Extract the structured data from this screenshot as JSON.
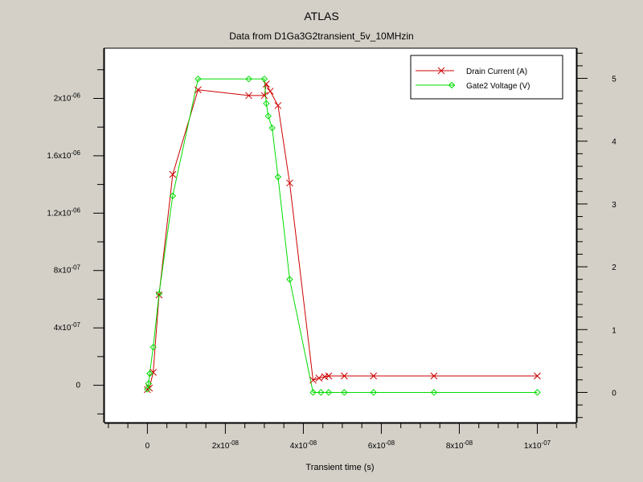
{
  "app_title": "ATLAS",
  "subtitle": "Data from D1Ga3G2transient_5v_10MHzin",
  "colors": {
    "background": "#d4d0c8",
    "plot_bg": "#ffffff",
    "drain": "#cc0000",
    "gate": "#00dd00"
  },
  "chart_data": {
    "type": "line",
    "title": "Data from D1Ga3G2transient_5v_10MHzin",
    "xlabel": "Transient time (s)",
    "ylabel": "",
    "y2label": "",
    "xlim": [
      -1.1e-08,
      1.1e-07
    ],
    "ylim": [
      -2.6e-07,
      2.35e-06
    ],
    "y2lim": [
      -0.48,
      5.48
    ],
    "x_ticks": [
      {
        "value": 0,
        "mant": "0",
        "exp": ""
      },
      {
        "value": 2e-08,
        "mant": "2x10",
        "exp": "-08"
      },
      {
        "value": 4e-08,
        "mant": "4x10",
        "exp": "-08"
      },
      {
        "value": 6e-08,
        "mant": "6x10",
        "exp": "-08"
      },
      {
        "value": 8e-08,
        "mant": "8x10",
        "exp": "-08"
      },
      {
        "value": 1e-07,
        "mant": "1x10",
        "exp": "-07"
      }
    ],
    "y_ticks": [
      {
        "value": 0,
        "mant": "0",
        "exp": ""
      },
      {
        "value": 4e-07,
        "mant": "4x10",
        "exp": "-07"
      },
      {
        "value": 8e-07,
        "mant": "8x10",
        "exp": "-07"
      },
      {
        "value": 1.2e-06,
        "mant": "1.2x10",
        "exp": "-06"
      },
      {
        "value": 1.6e-06,
        "mant": "1.6x10",
        "exp": "-06"
      },
      {
        "value": 2e-06,
        "mant": "2x10",
        "exp": "-06"
      }
    ],
    "y2_ticks": [
      {
        "value": 0,
        "label": "0"
      },
      {
        "value": 1,
        "label": "1"
      },
      {
        "value": 2,
        "label": "2"
      },
      {
        "value": 3,
        "label": "3"
      },
      {
        "value": 4,
        "label": "4"
      },
      {
        "value": 5,
        "label": "5"
      }
    ],
    "legend_position": "top-right",
    "series": [
      {
        "name": "Drain Current (A)",
        "axis": "left",
        "marker": "x",
        "x": [
          0,
          5e-10,
          1.5e-09,
          3e-09,
          6.5e-09,
          1.3e-08,
          2.6e-08,
          3e-08,
          3.05e-08,
          3.15e-08,
          3.35e-08,
          3.65e-08,
          4.25e-08,
          4.4e-08,
          4.55e-08,
          4.65e-08,
          5.05e-08,
          5.8e-08,
          7.35e-08,
          1e-07
        ],
        "y": [
          -3e-08,
          -2e-08,
          9e-08,
          6.3e-07,
          1.47e-06,
          2.06e-06,
          2.02e-06,
          2.02e-06,
          2.1e-06,
          2.05e-06,
          1.95e-06,
          1.41e-06,
          3.5e-08,
          5e-08,
          6e-08,
          6.5e-08,
          6.5e-08,
          6.5e-08,
          6.5e-08,
          6.5e-08
        ]
      },
      {
        "name": "Gate2 Voltage (V)",
        "axis": "right",
        "marker": "diamond",
        "x": [
          0,
          3e-10,
          6e-10,
          1.5e-09,
          3e-09,
          6.5e-09,
          1.3e-08,
          2.6e-08,
          3e-08,
          3.05e-08,
          3.1e-08,
          3.2e-08,
          3.35e-08,
          3.65e-08,
          4.25e-08,
          4.45e-08,
          4.65e-08,
          5.05e-08,
          5.8e-08,
          7.35e-08,
          1e-07
        ],
        "y": [
          0.05,
          0.14,
          0.3,
          0.72,
          1.57,
          3.13,
          4.99,
          4.99,
          4.99,
          4.6,
          4.4,
          4.21,
          3.43,
          1.8,
          0.0,
          0.0,
          0.0,
          0.0,
          0.0,
          0.0,
          0.0
        ]
      }
    ]
  }
}
